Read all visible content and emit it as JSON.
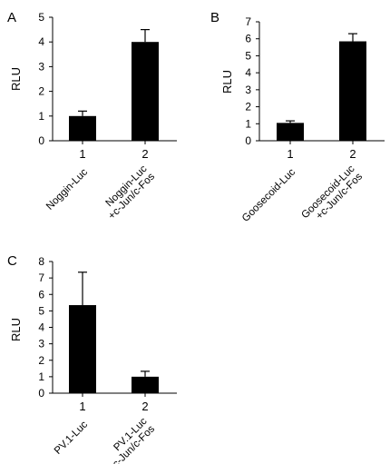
{
  "chart_data": [
    {
      "panel": "A",
      "type": "bar",
      "ylabel": "RLU",
      "ylim": [
        0,
        5
      ],
      "yticks": [
        "0",
        "1",
        "2",
        "3",
        "4",
        "5"
      ],
      "numbers": [
        "1",
        "2"
      ],
      "categories": [
        [
          "Noggin-Luc"
        ],
        [
          "Noggin-Luc",
          "+c-Jun/c-Fos"
        ]
      ],
      "values": [
        1.0,
        4.0
      ],
      "errors": [
        0.2,
        0.5
      ]
    },
    {
      "panel": "B",
      "type": "bar",
      "ylabel": "RLU",
      "ylim": [
        0,
        7
      ],
      "yticks": [
        "0",
        "1",
        "2",
        "3",
        "4",
        "5",
        "6",
        "7"
      ],
      "numbers": [
        "1",
        "2"
      ],
      "categories": [
        [
          "Goosecoid-Luc"
        ],
        [
          "Goosecoid-Luc",
          "+c-Jun/c-Fos"
        ]
      ],
      "values": [
        1.05,
        5.85
      ],
      "errors": [
        0.12,
        0.45
      ]
    },
    {
      "panel": "C",
      "type": "bar",
      "ylabel": "RLU",
      "ylim": [
        0,
        8
      ],
      "yticks": [
        "0",
        "1",
        "2",
        "3",
        "4",
        "5",
        "6",
        "7",
        "8"
      ],
      "numbers": [
        "1",
        "2"
      ],
      "categories": [
        [
          "PV.1-Luc"
        ],
        [
          "PV.1-Luc",
          "+c-Jun/c-Fos"
        ]
      ],
      "values": [
        5.35,
        1.0
      ],
      "errors": [
        2.0,
        0.33
      ]
    }
  ],
  "colors": {
    "bar": "#000000",
    "axis": "#000000"
  }
}
